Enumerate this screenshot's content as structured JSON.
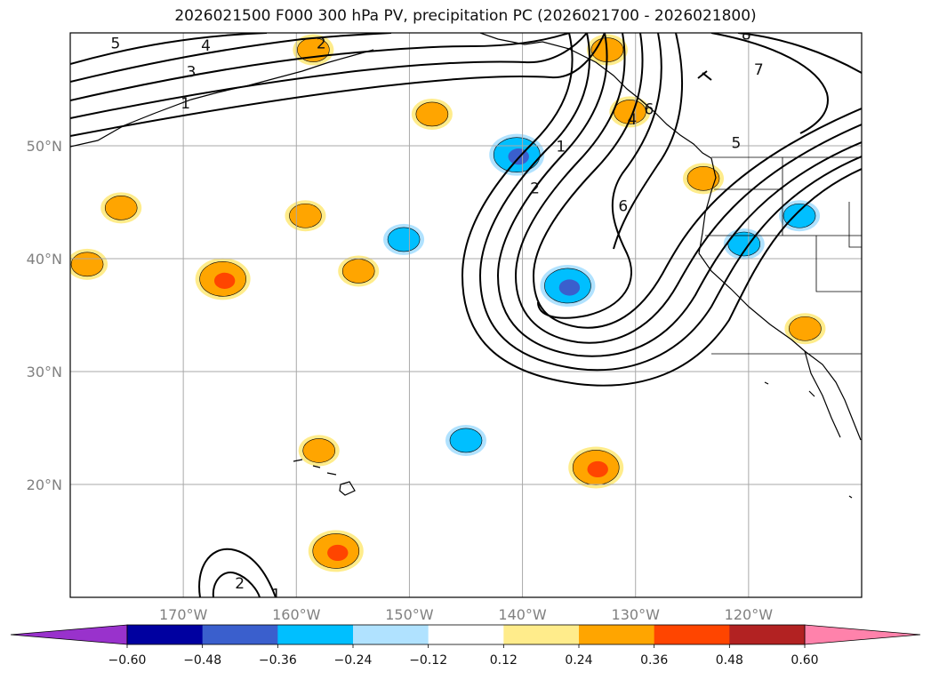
{
  "chart_data": {
    "type": "map-contour",
    "title": "2026021500 F000 300 hPa PV, precipitation PC (2026021700 - 2026021800)",
    "lon_range": [
      -180,
      -110
    ],
    "lat_range": [
      10,
      60
    ],
    "lat_ticks": [
      {
        "value": 50,
        "label": "50°N"
      },
      {
        "value": 40,
        "label": "40°N"
      },
      {
        "value": 30,
        "label": "30°N"
      },
      {
        "value": 20,
        "label": "20°N"
      }
    ],
    "lon_ticks": [
      {
        "value": -170,
        "label": "170°W"
      },
      {
        "value": -160,
        "label": "160°W"
      },
      {
        "value": -150,
        "label": "150°W"
      },
      {
        "value": -140,
        "label": "140°W"
      },
      {
        "value": -130,
        "label": "130°W"
      },
      {
        "value": -120,
        "label": "120°W"
      }
    ],
    "colorbar": {
      "boundaries": [
        -0.6,
        -0.48,
        -0.36,
        -0.24,
        -0.12,
        0.12,
        0.24,
        0.36,
        0.48,
        0.6
      ],
      "tick_labels": [
        "−0.60",
        "−0.48",
        "−0.36",
        "−0.24",
        "−0.12",
        "0.12",
        "0.24",
        "0.36",
        "0.48",
        "0.60"
      ],
      "colors": [
        "#0000a0",
        "#3a5fcd",
        "#00bfff",
        "#b0e2ff",
        "#ffffff",
        "#ffec8b",
        "#ffa500",
        "#ff4500",
        "#b22222"
      ],
      "under_color": "#9932cc",
      "over_color": "#ff82ab"
    },
    "pv_contour_labels": [
      {
        "text": "5",
        "lon": -176,
        "lat": 59
      },
      {
        "text": "4",
        "lon": -168,
        "lat": 58.8
      },
      {
        "text": "3",
        "lon": -169.3,
        "lat": 56.5
      },
      {
        "text": "1",
        "lon": -169.8,
        "lat": 53.7
      },
      {
        "text": "2",
        "lon": -157.8,
        "lat": 59
      },
      {
        "text": "8",
        "lon": -120.2,
        "lat": 59.8
      },
      {
        "text": "7",
        "lon": -119.1,
        "lat": 56.7
      },
      {
        "text": "5",
        "lon": -121.1,
        "lat": 50.2
      },
      {
        "text": "4",
        "lon": -130.3,
        "lat": 52.3
      },
      {
        "text": "6",
        "lon": -128.8,
        "lat": 53.2
      },
      {
        "text": "1",
        "lon": -136.6,
        "lat": 49.9
      },
      {
        "text": "2",
        "lon": -138.9,
        "lat": 46.2
      },
      {
        "text": "6",
        "lon": -131.1,
        "lat": 44.6
      },
      {
        "text": "2",
        "lon": -165,
        "lat": 11.2
      },
      {
        "text": "1",
        "lon": -161.8,
        "lat": 10.2
      }
    ],
    "precip_regions": [
      {
        "lon": -175.5,
        "lat": 44.5,
        "value": 0.3
      },
      {
        "lon": -178.5,
        "lat": 39.5,
        "value": 0.3
      },
      {
        "lon": -166.5,
        "lat": 38.2,
        "value": 0.4
      },
      {
        "lon": -159.2,
        "lat": 43.8,
        "value": 0.3
      },
      {
        "lon": -154.5,
        "lat": 38.9,
        "value": 0.3
      },
      {
        "lon": -148,
        "lat": 52.8,
        "value": 0.3
      },
      {
        "lon": -158.5,
        "lat": 58.5,
        "value": 0.3
      },
      {
        "lon": -132.5,
        "lat": 58.5,
        "value": 0.3
      },
      {
        "lon": -130.5,
        "lat": 53,
        "value": 0.3
      },
      {
        "lon": -140.5,
        "lat": 49.2,
        "value": -0.4
      },
      {
        "lon": -136,
        "lat": 37.6,
        "value": -0.4
      },
      {
        "lon": -150.5,
        "lat": 41.7,
        "value": -0.2
      },
      {
        "lon": -115.5,
        "lat": 43.8,
        "value": -0.3
      },
      {
        "lon": -120.4,
        "lat": 41.3,
        "value": -0.3
      },
      {
        "lon": -124,
        "lat": 47.1,
        "value": 0.3
      },
      {
        "lon": -115,
        "lat": 33.8,
        "value": 0.3
      },
      {
        "lon": -133.5,
        "lat": 21.5,
        "value": 0.4
      },
      {
        "lon": -156.5,
        "lat": 14.1,
        "value": 0.4
      },
      {
        "lon": -145,
        "lat": 23.9,
        "value": -0.3
      },
      {
        "lon": -158,
        "lat": 23,
        "value": 0.3
      }
    ]
  }
}
